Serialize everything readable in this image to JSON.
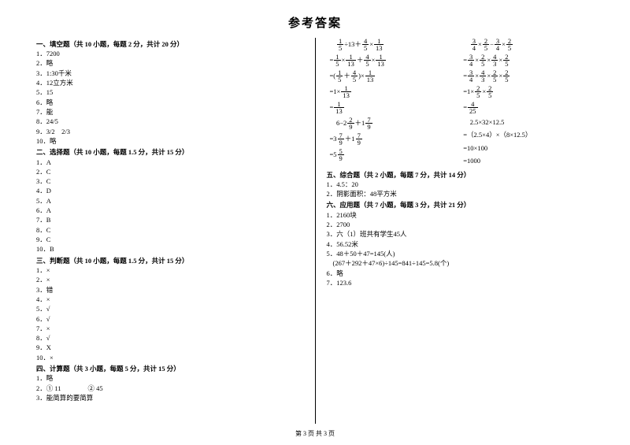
{
  "title": "参考答案",
  "sections": {
    "s1": "一、填空题（共 10 小题，每题 2 分，共计 20 分）",
    "s2": "二、选择题（共 10 小题，每题 1.5 分，共计 15 分）",
    "s3": "三、判断题（共 10 小题，每题 1.5 分，共计 15 分）",
    "s4": "四、计算题（共 3 小题，每题 5 分，共计 15 分）",
    "s5": "五、综合题（共 2 小题，每题 7 分，共计 14 分）",
    "s6": "六、应用题（共 7 小题，每题 3 分，共计 21 分）"
  },
  "fill": {
    "i1": "1．7200",
    "i2": "2．略",
    "i3": "3．1:30千米",
    "i4": "4．12立方米",
    "i5": "5．15",
    "i6": "6．略",
    "i7": "7．能",
    "i8": "8．24/5",
    "i9": "9．3/2　2/3",
    "i10": "10．略"
  },
  "choice": {
    "i1": "1．A",
    "i2": "2．C",
    "i3": "3．C",
    "i4": "4．D",
    "i5": "5．A",
    "i6": "6．A",
    "i7": "7．B",
    "i8": "8．C",
    "i9": "9．C",
    "i10": "10．B"
  },
  "judge": {
    "i1": "1．×",
    "i2": "2．×",
    "i3": "3．错",
    "i4": "4．×",
    "i5": "5．√",
    "i6": "6．√",
    "i7": "7．×",
    "i8": "8．√",
    "i9": "9．X",
    "i10": "10．×"
  },
  "calc": {
    "i1": "1．略",
    "i2": "2．① 11　　　　② 45",
    "i3": "3．能简算的要简算"
  },
  "eq": {
    "a1_pre": "　",
    "a1_mid": "÷13＋",
    "a1_post": "×",
    "a2_pre": "=",
    "a2_m1": "×",
    "a2_m2": "＋",
    "a2_m3": "×",
    "a3_pre": "=(",
    "a3_m1": "＋",
    "a3_m2": ")×",
    "a4_pre": "=1×",
    "a5_pre": "=",
    "b1_pre": "　",
    "b1_m1": "×",
    "b1_m2": "−",
    "b1_m3": "×",
    "b2_pre": "=",
    "b2_m1": "×",
    "b2_m2": "×",
    "b2_m3": "×",
    "b3_pre": "=",
    "b3_m1": "×",
    "b3_m2": "×",
    "b3_m3": "×",
    "b4_pre": "=1×",
    "b4_m1": "×",
    "b5_pre": "=",
    "c1_pre": "　6−2",
    "c1_m1": "＋1",
    "c2_pre": "=3",
    "c2_m1": "＋1",
    "c3_pre": "=5",
    "d1": "　2.5×32×12.5",
    "d2": "=（2.5×4）×（8×12.5）",
    "d3": "=10×100",
    "d4": "=1000"
  },
  "comp": {
    "i1": "1．4.5：20",
    "i2": "2．阴影面积：48平方米"
  },
  "app": {
    "i1": "1．2160块",
    "i2": "2．2700",
    "i3": "3．六（1）班共有学生45人",
    "i4": "4．56.52米",
    "i5a": "5．48＋50＋47=145(人)",
    "i5b": "(267＋292＋47×6)÷145=841÷145=5.8(个)",
    "i6": "6．略",
    "i7": "7．123.6"
  },
  "footer": "第 3 页 共 3 页"
}
